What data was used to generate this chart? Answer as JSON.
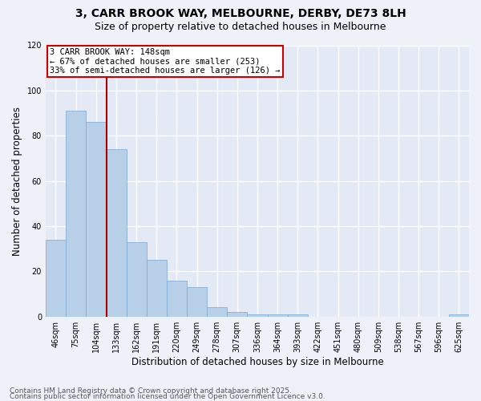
{
  "title1": "3, CARR BROOK WAY, MELBOURNE, DERBY, DE73 8LH",
  "title2": "Size of property relative to detached houses in Melbourne",
  "xlabel": "Distribution of detached houses by size in Melbourne",
  "ylabel": "Number of detached properties",
  "categories": [
    "46sqm",
    "75sqm",
    "104sqm",
    "133sqm",
    "162sqm",
    "191sqm",
    "220sqm",
    "249sqm",
    "278sqm",
    "307sqm",
    "336sqm",
    "364sqm",
    "393sqm",
    "422sqm",
    "451sqm",
    "480sqm",
    "509sqm",
    "538sqm",
    "567sqm",
    "596sqm",
    "625sqm"
  ],
  "values": [
    34,
    91,
    86,
    74,
    33,
    25,
    16,
    13,
    4,
    2,
    1,
    1,
    1,
    0,
    0,
    0,
    0,
    0,
    0,
    0,
    1
  ],
  "bar_color": "#b8cfe8",
  "bar_edge_color": "#7aa8d4",
  "annotation_line1": "3 CARR BROOK WAY: 148sqm",
  "annotation_line2": "← 67% of detached houses are smaller (253)",
  "annotation_line3": "33% of semi-detached houses are larger (126) →",
  "footer1": "Contains HM Land Registry data © Crown copyright and database right 2025.",
  "footer2": "Contains public sector information licensed under the Open Government Licence v3.0.",
  "ylim": [
    0,
    120
  ],
  "bg_color": "#eef2f8",
  "plot_bg_color": "#e4eaf5",
  "grid_color": "#ffffff",
  "vline_color": "#aa0000",
  "vline_pos": 2.52,
  "annotation_box_color": "#cc0000",
  "title_fontsize": 10,
  "subtitle_fontsize": 9,
  "axis_label_fontsize": 8.5,
  "tick_fontsize": 7,
  "annotation_fontsize": 7.5,
  "footer_fontsize": 6.5
}
